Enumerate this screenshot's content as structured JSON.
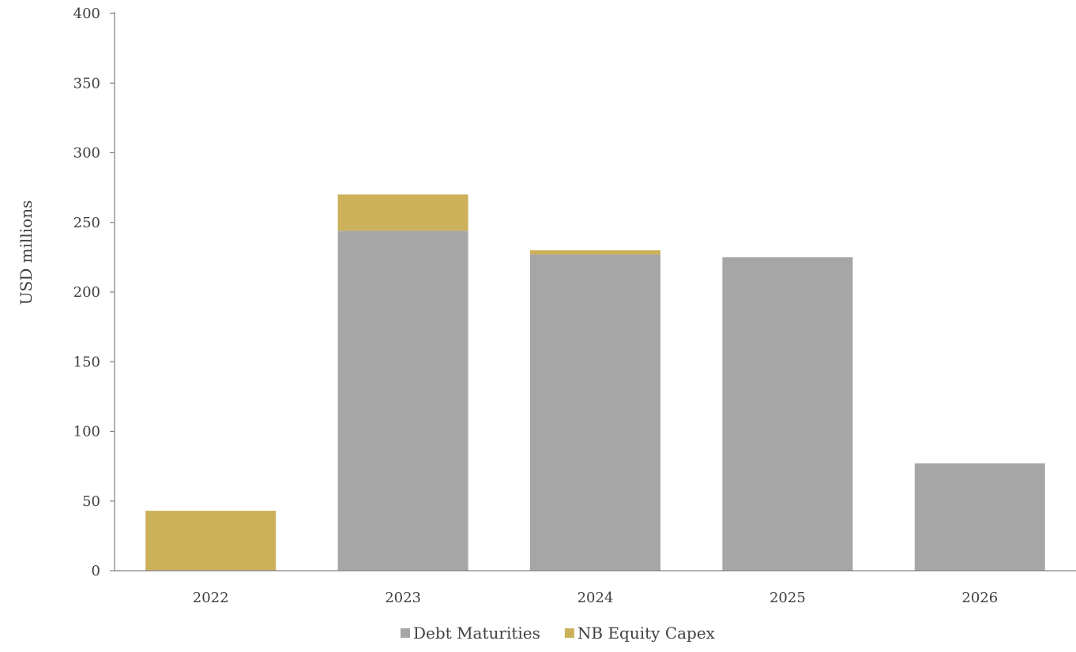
{
  "chart_data": {
    "type": "bar",
    "stacked": true,
    "title": "",
    "xlabel": "",
    "ylabel": "USD millions",
    "ylim": [
      0,
      400
    ],
    "yticks": [
      0,
      50,
      100,
      150,
      200,
      250,
      300,
      350,
      400
    ],
    "categories": [
      "2022",
      "2023",
      "2024",
      "2025",
      "2026"
    ],
    "series": [
      {
        "name": "Debt Maturities",
        "values": [
          0,
          244,
          227,
          225,
          77
        ],
        "color": "#a6a6a6"
      },
      {
        "name": "NB Equity Capex",
        "values": [
          43,
          26,
          3,
          0,
          0
        ],
        "color": "#ccb05a"
      }
    ],
    "grid": false,
    "legend_position": "bottom"
  }
}
